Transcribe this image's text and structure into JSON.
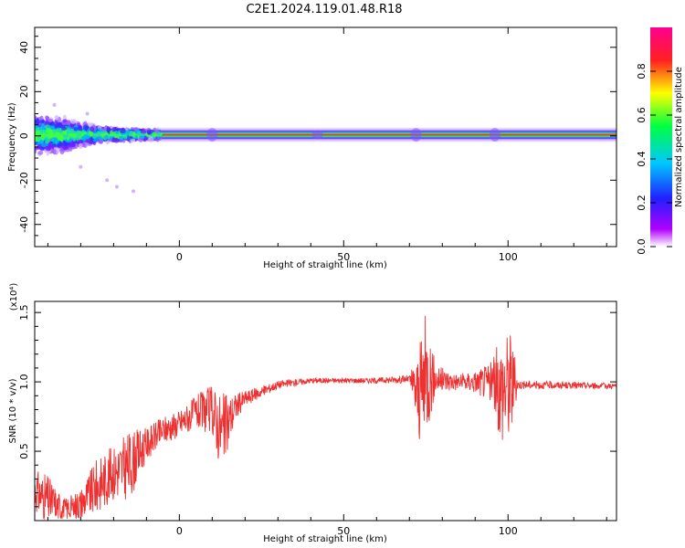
{
  "title": "C2E1.2024.119.01.48.R18",
  "chart_data": [
    {
      "type": "heatmap",
      "xlabel": "Height of straight line (km)",
      "ylabel": "Frequency (Hz)",
      "xlim": [
        -44,
        133
      ],
      "ylim": [
        -50,
        49
      ],
      "xticks": [
        0,
        50,
        100
      ],
      "yticks": [
        -40,
        -20,
        0,
        20,
        40
      ],
      "colorbar": {
        "label": "Normalized spectral amplitude",
        "range": [
          0,
          1
        ],
        "ticks": [
          "0.0",
          "0.2",
          "0.4",
          "0.6",
          "0.8"
        ],
        "colors": [
          "#ffffff",
          "#b000ff",
          "#2020ff",
          "#00c8ff",
          "#00ff40",
          "#ffff00",
          "#ff2020",
          "#ff0090"
        ]
      },
      "description_of_trace": {
        "center_frequency_hz": 0.5,
        "spread_hz": [
          {
            "x": -44,
            "half_width": 10
          },
          {
            "x": -35,
            "half_width": 8
          },
          {
            "x": -25,
            "half_width": 4
          },
          {
            "x": -12,
            "half_width": 2.5
          },
          {
            "x": 0,
            "half_width": 2
          },
          {
            "x": 133,
            "half_width": 2
          }
        ]
      }
    },
    {
      "type": "line",
      "xlabel": "Height of straight line (km)",
      "ylabel": "SNR (10 * v/v)",
      "y_scale_label": "(x10⁴)",
      "xlim": [
        -44,
        133
      ],
      "ylim": [
        0.0,
        1.58
      ],
      "xticks": [
        0,
        50,
        100
      ],
      "yticks": [
        "0.5",
        "1.0",
        "1.5"
      ],
      "series": [
        {
          "color": "#ee3030",
          "envelope": [
            {
              "x": -44,
              "y": 0.22,
              "amp": 0.15
            },
            {
              "x": -40,
              "y": 0.15,
              "amp": 0.18
            },
            {
              "x": -35,
              "y": 0.08,
              "amp": 0.08
            },
            {
              "x": -30,
              "y": 0.12,
              "amp": 0.12
            },
            {
              "x": -25,
              "y": 0.25,
              "amp": 0.2
            },
            {
              "x": -20,
              "y": 0.35,
              "amp": 0.2
            },
            {
              "x": -15,
              "y": 0.4,
              "amp": 0.25
            },
            {
              "x": -10,
              "y": 0.55,
              "amp": 0.12
            },
            {
              "x": -5,
              "y": 0.65,
              "amp": 0.1
            },
            {
              "x": 0,
              "y": 0.7,
              "amp": 0.1
            },
            {
              "x": 5,
              "y": 0.78,
              "amp": 0.12
            },
            {
              "x": 10,
              "y": 0.8,
              "amp": 0.18
            },
            {
              "x": 13,
              "y": 0.62,
              "amp": 0.3
            },
            {
              "x": 17,
              "y": 0.82,
              "amp": 0.1
            },
            {
              "x": 20,
              "y": 0.88,
              "amp": 0.06
            },
            {
              "x": 25,
              "y": 0.93,
              "amp": 0.04
            },
            {
              "x": 30,
              "y": 0.98,
              "amp": 0.03
            },
            {
              "x": 40,
              "y": 1.01,
              "amp": 0.02
            },
            {
              "x": 60,
              "y": 1.01,
              "amp": 0.02
            },
            {
              "x": 70,
              "y": 1.02,
              "amp": 0.03
            },
            {
              "x": 73,
              "y": 0.9,
              "amp": 0.35
            },
            {
              "x": 75,
              "y": 1.05,
              "amp": 0.45
            },
            {
              "x": 78,
              "y": 1.02,
              "amp": 0.1
            },
            {
              "x": 85,
              "y": 1.0,
              "amp": 0.06
            },
            {
              "x": 90,
              "y": 1.0,
              "amp": 0.08
            },
            {
              "x": 95,
              "y": 1.0,
              "amp": 0.15
            },
            {
              "x": 98,
              "y": 0.95,
              "amp": 0.4
            },
            {
              "x": 101,
              "y": 1.0,
              "amp": 0.4
            },
            {
              "x": 103,
              "y": 0.98,
              "amp": 0.03
            },
            {
              "x": 133,
              "y": 0.97,
              "amp": 0.02
            }
          ]
        }
      ]
    }
  ]
}
